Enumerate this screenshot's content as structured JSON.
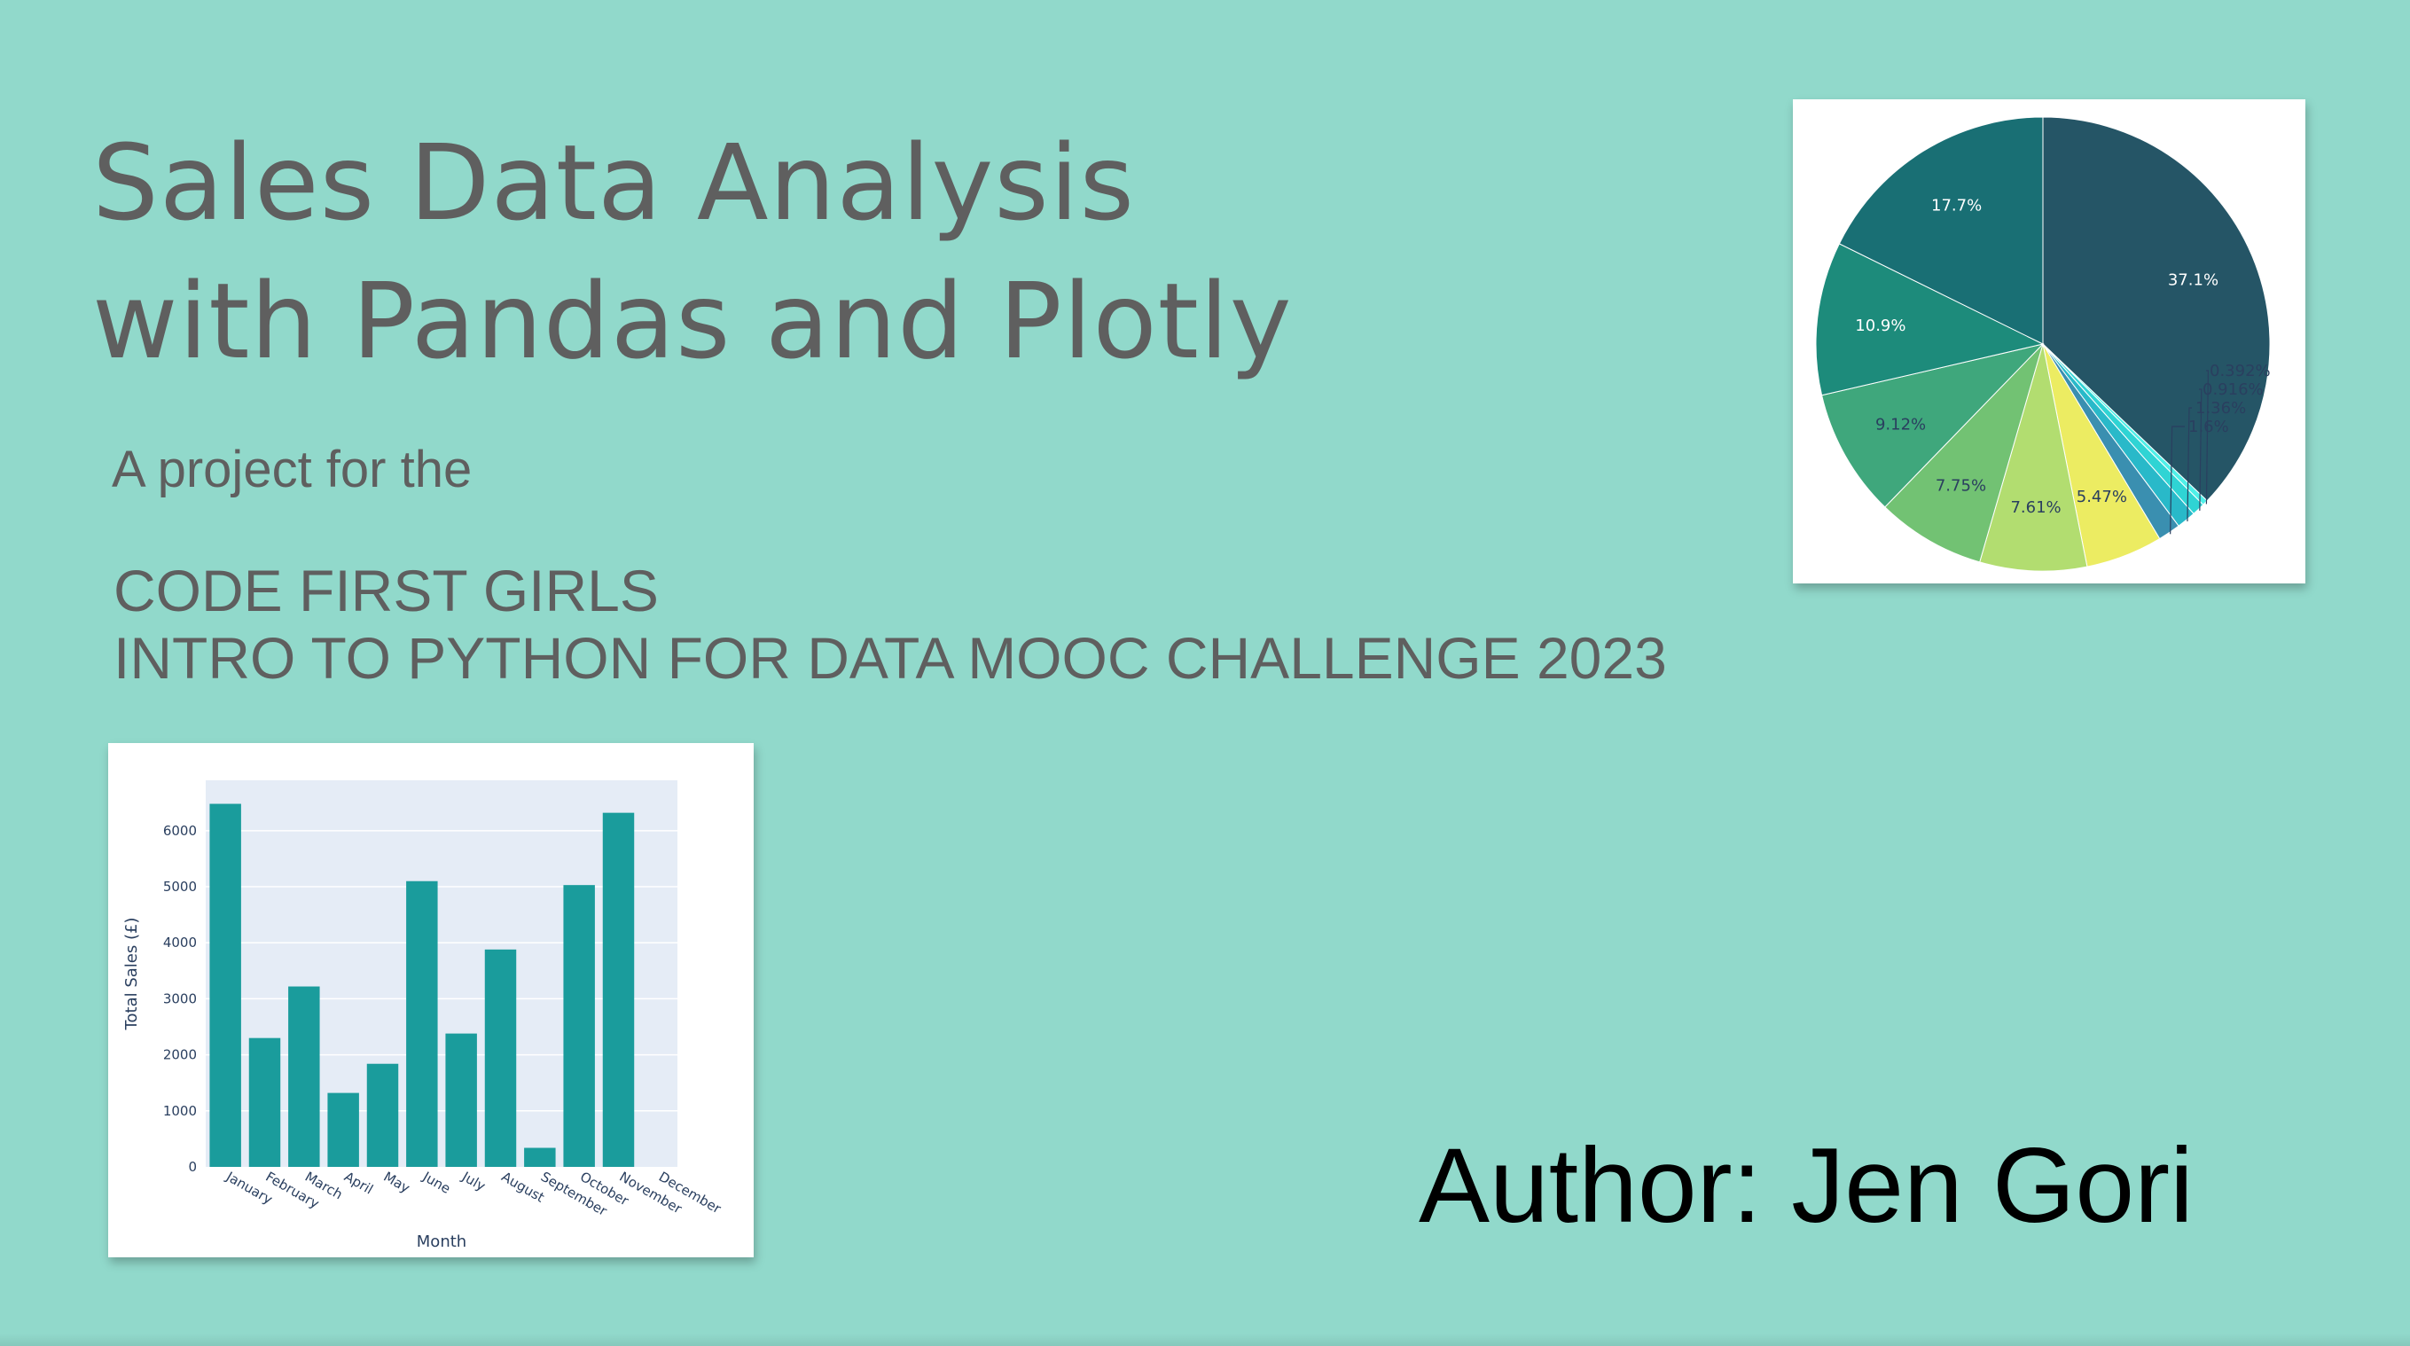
{
  "slide": {
    "title_line1": "Sales Data Analysis",
    "title_line2": "with Pandas and Plotly",
    "subtitle": "A project for the",
    "org_line1": "CODE FIRST GIRLS",
    "org_line2": "INTRO TO PYTHON FOR DATA MOOC CHALLENGE 2023",
    "author": "Author: Jen Gori"
  },
  "chart_data": [
    {
      "type": "pie",
      "slices": [
        {
          "label": "37.1%",
          "value": 37.1,
          "color": "#255566"
        },
        {
          "label": "0.392%",
          "value": 0.392,
          "color": "#4ff0e8"
        },
        {
          "label": "0.916%",
          "value": 0.916,
          "color": "#2fd4d4"
        },
        {
          "label": "1.36%",
          "value": 1.36,
          "color": "#29b9c9"
        },
        {
          "label": "1.6%",
          "value": 1.6,
          "color": "#3a8fb0"
        },
        {
          "label": "5.47%",
          "value": 5.47,
          "color": "#ecec62"
        },
        {
          "label": "7.61%",
          "value": 7.61,
          "color": "#b2dd70"
        },
        {
          "label": "7.75%",
          "value": 7.75,
          "color": "#72c273"
        },
        {
          "label": "9.12%",
          "value": 9.12,
          "color": "#3fa77c"
        },
        {
          "label": "10.9%",
          "value": 10.9,
          "color": "#1d8b7b"
        },
        {
          "label": "17.7%",
          "value": 17.7,
          "color": "#196f74"
        }
      ]
    },
    {
      "type": "bar",
      "categories": [
        "January",
        "February",
        "March",
        "April",
        "May",
        "June",
        "July",
        "August",
        "September",
        "October",
        "November",
        "December"
      ],
      "values": [
        6480,
        2300,
        3220,
        1320,
        1840,
        5100,
        2380,
        3880,
        340,
        5030,
        6320,
        0
      ],
      "xlabel": "Month",
      "ylabel": "Total Sales (£)",
      "ylim": [
        0,
        6900
      ],
      "yticks": [
        0,
        1000,
        2000,
        3000,
        4000,
        5000,
        6000
      ],
      "bar_color": "#1a9c9c",
      "plot_bg": "#e5ecf6",
      "grid": true
    }
  ]
}
